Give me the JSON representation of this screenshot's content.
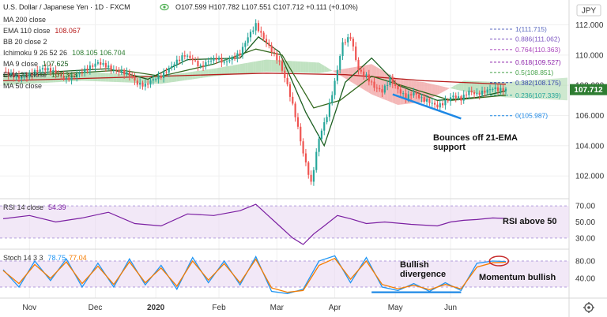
{
  "header": {
    "symbol_title": "U.S. Dollar / Japanese Yen · 1D · FXCM",
    "ohlc": "O107.599  H107.782  L107.551  C107.712  +0.111  (+0.10%)",
    "currency": "JPY",
    "last_price": "107.712"
  },
  "legend": [
    {
      "label": "MA 200 close",
      "value": "",
      "color": "#9e9e9e"
    },
    {
      "label": "EMA 110 close",
      "value": "108.067",
      "color": "#b71c1c"
    },
    {
      "label": "BB 20 close 2",
      "value": "",
      "color": "#9e9e9e"
    },
    {
      "label": "Ichimoku 9 26 52 26",
      "value": "108.105  106.704",
      "color": "#2e7d32"
    },
    {
      "label": "MA 9 close",
      "value": "107.625",
      "color": "#1b5e20"
    },
    {
      "label": "EMA 21 close",
      "value": "107.343",
      "color": "#33691e"
    },
    {
      "label": "MA 50 close",
      "value": "",
      "color": "#9e9e9e"
    }
  ],
  "fib_levels": [
    {
      "label": "1(111.715)",
      "value": 111.715,
      "color": "#5c6bc0"
    },
    {
      "label": "0.886(111.062)",
      "value": 111.062,
      "color": "#7e57c2"
    },
    {
      "label": "0.764(110.363)",
      "value": 110.363,
      "color": "#ab47bc"
    },
    {
      "label": "0.618(109.527)",
      "value": 109.527,
      "color": "#8e24aa"
    },
    {
      "label": "0.5(108.851)",
      "value": 108.851,
      "color": "#43a047"
    },
    {
      "label": "0.382(108.175)",
      "value": 108.175,
      "color": "#3949ab"
    },
    {
      "label": "0.236(107.339)",
      "value": 107.339,
      "color": "#26a69a"
    },
    {
      "label": "0(105.987)",
      "value": 105.987,
      "color": "#1e88e5"
    }
  ],
  "rsi_legend": {
    "label": "RSI 14 close",
    "value": "54.39",
    "color": "#7b1fa2"
  },
  "stoch_legend": {
    "label": "Stoch 14 3 3",
    "k": "78.75",
    "d": "77.04",
    "k_color": "#2196f3",
    "d_color": "#f57c00"
  },
  "annotations": {
    "ema_bounce": "Bounces off 21-EMA\nsupport",
    "rsi": "RSI above 50",
    "divergence": "Bullish\ndivergence",
    "momentum": "Momentum bullish"
  },
  "icons": [
    "eye-icon",
    "gear-icon"
  ],
  "chart_data": [
    {
      "type": "candlestick",
      "title": "U.S. Dollar / Japanese Yen · 1D · FXCM",
      "x_ticks": [
        "Nov",
        "Dec",
        "2020",
        "Feb",
        "Mar",
        "Apr",
        "May",
        "Jun"
      ],
      "y_ticks": [
        102.0,
        104.0,
        106.0,
        108.0,
        110.0,
        112.0
      ],
      "ylim": [
        100.7,
        112.6
      ],
      "close_path": [
        [
          0,
          108.9
        ],
        [
          3,
          108.7
        ],
        [
          6,
          108.5
        ],
        [
          9,
          108.6
        ],
        [
          12,
          108.9
        ],
        [
          15,
          109.1
        ],
        [
          18,
          109.0
        ],
        [
          21,
          108.7
        ],
        [
          24,
          108.4
        ],
        [
          27,
          108.6
        ],
        [
          30,
          108.9
        ],
        [
          33,
          109.2
        ],
        [
          36,
          109.5
        ],
        [
          39,
          109.3
        ],
        [
          42,
          109.0
        ],
        [
          45,
          108.9
        ],
        [
          48,
          108.7
        ],
        [
          51,
          108.1
        ],
        [
          54,
          108.0
        ],
        [
          57,
          108.4
        ],
        [
          60,
          108.6
        ],
        [
          63,
          109.1
        ],
        [
          66,
          109.6
        ],
        [
          69,
          110.0
        ],
        [
          72,
          109.7
        ],
        [
          75,
          109.2
        ],
        [
          78,
          109.6
        ],
        [
          81,
          109.8
        ],
        [
          84,
          109.5
        ],
        [
          87,
          109.8
        ],
        [
          90,
          110.1
        ],
        [
          93,
          111.2
        ],
        [
          96,
          112.0
        ],
        [
          99,
          111.1
        ],
        [
          102,
          110.3
        ],
        [
          105,
          109.5
        ],
        [
          108,
          108.0
        ],
        [
          111,
          106.0
        ],
        [
          114,
          103.5
        ],
        [
          117,
          101.5
        ],
        [
          120,
          104.5
        ],
        [
          123,
          106.0
        ],
        [
          126,
          108.2
        ],
        [
          129,
          110.8
        ],
        [
          132,
          111.2
        ],
        [
          135,
          109.0
        ],
        [
          138,
          108.6
        ],
        [
          141,
          107.9
        ],
        [
          144,
          107.6
        ],
        [
          147,
          108.4
        ],
        [
          150,
          107.7
        ],
        [
          153,
          107.2
        ],
        [
          156,
          107.5
        ],
        [
          159,
          107.1
        ],
        [
          162,
          106.9
        ],
        [
          165,
          106.6
        ],
        [
          168,
          106.9
        ],
        [
          171,
          107.3
        ],
        [
          174,
          107.1
        ],
        [
          177,
          107.6
        ],
        [
          180,
          107.4
        ],
        [
          183,
          107.6
        ],
        [
          186,
          107.8
        ],
        [
          189,
          107.7
        ],
        [
          191,
          107.712
        ]
      ],
      "overlays": [
        {
          "name": "EMA 110",
          "color": "#b71c1c",
          "points": [
            [
              0,
              108.3
            ],
            [
              40,
              108.5
            ],
            [
              80,
              108.7
            ],
            [
              100,
              108.8
            ],
            [
              130,
              108.7
            ],
            [
              160,
              108.3
            ],
            [
              191,
              108.067
            ]
          ]
        },
        {
          "name": "MA 9",
          "color": "#1b5e20",
          "points": [
            [
              0,
              108.7
            ],
            [
              20,
              108.9
            ],
            [
              40,
              109.1
            ],
            [
              55,
              108.4
            ],
            [
              70,
              109.7
            ],
            [
              90,
              109.8
            ],
            [
              97,
              111.2
            ],
            [
              105,
              110.2
            ],
            [
              115,
              106.2
            ],
            [
              122,
              104.0
            ],
            [
              130,
              108.2
            ],
            [
              140,
              109.8
            ],
            [
              150,
              108.0
            ],
            [
              165,
              107.0
            ],
            [
              180,
              107.2
            ],
            [
              191,
              107.625
            ]
          ]
        },
        {
          "name": "EMA 21",
          "color": "#33691e",
          "points": [
            [
              0,
              108.6
            ],
            [
              25,
              108.8
            ],
            [
              45,
              109.0
            ],
            [
              60,
              108.6
            ],
            [
              80,
              109.4
            ],
            [
              96,
              110.4
            ],
            [
              106,
              110.0
            ],
            [
              118,
              106.5
            ],
            [
              128,
              107.0
            ],
            [
              140,
              108.6
            ],
            [
              155,
              107.8
            ],
            [
              170,
              107.0
            ],
            [
              191,
              107.343
            ]
          ]
        }
      ],
      "ichimoku_cloud": [
        {
          "x": 0,
          "a": 108.5,
          "b": 108.0
        },
        {
          "x": 30,
          "a": 108.9,
          "b": 108.3
        },
        {
          "x": 60,
          "a": 108.6,
          "b": 108.1
        },
        {
          "x": 80,
          "a": 109.1,
          "b": 108.6
        },
        {
          "x": 100,
          "a": 109.7,
          "b": 108.9
        },
        {
          "x": 120,
          "a": 109.5,
          "b": 108.8
        },
        {
          "x": 140,
          "a": 107.4,
          "b": 109.4
        },
        {
          "x": 150,
          "a": 106.7,
          "b": 108.4
        },
        {
          "x": 160,
          "a": 106.9,
          "b": 108.2
        },
        {
          "x": 175,
          "a": 108.3,
          "b": 107.6
        },
        {
          "x": 191,
          "a": 108.2,
          "b": 107.2
        }
      ],
      "trendline": {
        "from": [
          148,
          107.4
        ],
        "to": [
          174,
          105.8
        ],
        "color": "#1e88e5"
      }
    },
    {
      "type": "line",
      "title": "RSI 14 close",
      "y_ticks": [
        30.0,
        50.0,
        70.0
      ],
      "ylim": [
        20,
        75
      ],
      "band": [
        30,
        70
      ],
      "series": [
        {
          "name": "RSI 14 close",
          "color": "#7b1fa2",
          "points": [
            [
              0,
              54
            ],
            [
              10,
              58
            ],
            [
              20,
              50
            ],
            [
              30,
              55
            ],
            [
              40,
              62
            ],
            [
              50,
              48
            ],
            [
              60,
              45
            ],
            [
              70,
              60
            ],
            [
              80,
              58
            ],
            [
              90,
              64
            ],
            [
              96,
              72
            ],
            [
              100,
              60
            ],
            [
              105,
              45
            ],
            [
              110,
              30
            ],
            [
              114,
              22
            ],
            [
              118,
              35
            ],
            [
              122,
              45
            ],
            [
              127,
              58
            ],
            [
              132,
              54
            ],
            [
              138,
              48
            ],
            [
              145,
              50
            ],
            [
              155,
              47
            ],
            [
              165,
              45
            ],
            [
              170,
              50
            ],
            [
              175,
              52
            ],
            [
              180,
              53
            ],
            [
              186,
              55
            ],
            [
              191,
              54.39
            ]
          ]
        }
      ]
    },
    {
      "type": "line",
      "title": "Stoch 14 3 3",
      "y_ticks": [
        40.0,
        80.0
      ],
      "ylim": [
        0,
        100
      ],
      "band": [
        20,
        80
      ],
      "series": [
        {
          "name": "%K",
          "color": "#2196f3",
          "points": [
            [
              0,
              60
            ],
            [
              6,
              20
            ],
            [
              12,
              80
            ],
            [
              18,
              35
            ],
            [
              24,
              85
            ],
            [
              30,
              20
            ],
            [
              36,
              75
            ],
            [
              42,
              20
            ],
            [
              48,
              85
            ],
            [
              54,
              25
            ],
            [
              60,
              70
            ],
            [
              66,
              15
            ],
            [
              72,
              88
            ],
            [
              78,
              30
            ],
            [
              84,
              80
            ],
            [
              90,
              25
            ],
            [
              96,
              90
            ],
            [
              102,
              10
            ],
            [
              108,
              5
            ],
            [
              114,
              15
            ],
            [
              120,
              80
            ],
            [
              126,
              92
            ],
            [
              132,
              30
            ],
            [
              138,
              88
            ],
            [
              144,
              20
            ],
            [
              150,
              12
            ],
            [
              156,
              28
            ],
            [
              162,
              10
            ],
            [
              168,
              30
            ],
            [
              174,
              12
            ],
            [
              180,
              75
            ],
            [
              186,
              80
            ],
            [
              191,
              78.75
            ]
          ]
        },
        {
          "name": "%D",
          "color": "#f57c00",
          "points": [
            [
              0,
              58
            ],
            [
              6,
              28
            ],
            [
              12,
              72
            ],
            [
              18,
              40
            ],
            [
              24,
              78
            ],
            [
              30,
              28
            ],
            [
              36,
              68
            ],
            [
              42,
              26
            ],
            [
              48,
              78
            ],
            [
              54,
              30
            ],
            [
              60,
              64
            ],
            [
              66,
              22
            ],
            [
              72,
              80
            ],
            [
              78,
              36
            ],
            [
              84,
              74
            ],
            [
              90,
              30
            ],
            [
              96,
              84
            ],
            [
              102,
              18
            ],
            [
              108,
              8
            ],
            [
              114,
              12
            ],
            [
              120,
              70
            ],
            [
              126,
              86
            ],
            [
              132,
              38
            ],
            [
              138,
              80
            ],
            [
              144,
              26
            ],
            [
              150,
              16
            ],
            [
              156,
              24
            ],
            [
              162,
              14
            ],
            [
              168,
              26
            ],
            [
              174,
              16
            ],
            [
              180,
              66
            ],
            [
              186,
              76
            ],
            [
              191,
              77.04
            ]
          ]
        }
      ],
      "divergence_line": {
        "from": [
          140,
          8
        ],
        "to": [
          174,
          8
        ],
        "color": "#1e88e5"
      },
      "highlight_ellipse_at": [
        186,
        80
      ]
    }
  ]
}
